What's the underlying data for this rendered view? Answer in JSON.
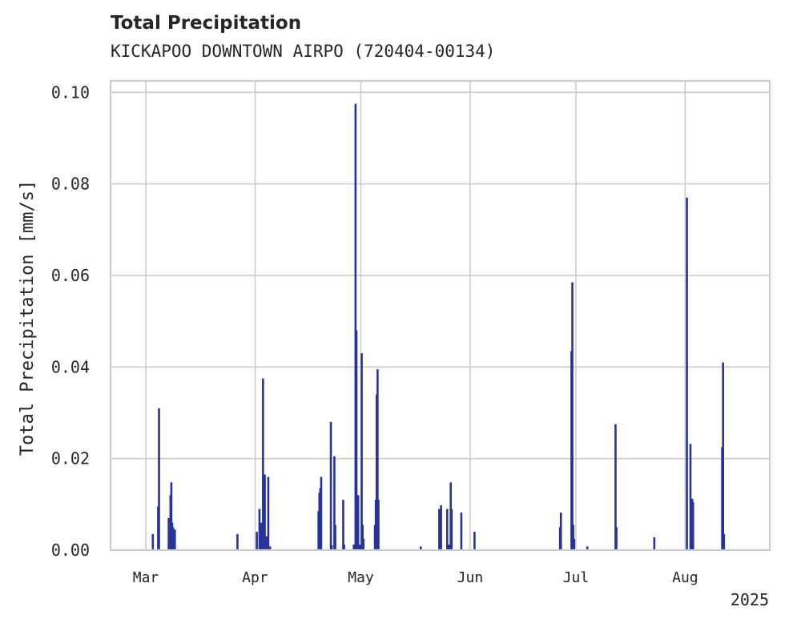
{
  "chart_data": {
    "type": "bar",
    "title": "Total Precipitation",
    "subtitle": "KICKAPOO DOWNTOWN AIRPO (720404-00134)",
    "ylabel": "Total Precipitation [mm/s]",
    "xlabel": "",
    "year_label": "2025",
    "grid": true,
    "color": "#27339a",
    "xlim": [
      "2025-02-19",
      "2025-08-25"
    ],
    "ylim": [
      0,
      0.1025
    ],
    "yticks": [
      0,
      0.02,
      0.04,
      0.06,
      0.08,
      0.1
    ],
    "ytick_labels": [
      "0.00",
      "0.02",
      "0.04",
      "0.06",
      "0.08",
      "0.10"
    ],
    "xticks": [
      "2025-03-01",
      "2025-04-01",
      "2025-05-01",
      "2025-06-01",
      "2025-07-01",
      "2025-08-01"
    ],
    "xtick_labels": [
      "Mar",
      "Apr",
      "May",
      "Jun",
      "Jul",
      "Aug"
    ],
    "points": [
      [
        "2025-03-03T00:00",
        0.0035
      ],
      [
        "2025-03-04T12:00",
        0.0095
      ],
      [
        "2025-03-04T18:00",
        0.031
      ],
      [
        "2025-03-07T12:00",
        0.007
      ],
      [
        "2025-03-08T00:00",
        0.012
      ],
      [
        "2025-03-08T06:00",
        0.0148
      ],
      [
        "2025-03-08T12:00",
        0.006
      ],
      [
        "2025-03-08T18:00",
        0.005
      ],
      [
        "2025-03-09T06:00",
        0.0045
      ],
      [
        "2025-03-27T00:00",
        0.0035
      ],
      [
        "2025-04-01T12:00",
        0.004
      ],
      [
        "2025-04-02T06:00",
        0.009
      ],
      [
        "2025-04-02T18:00",
        0.006
      ],
      [
        "2025-04-03T06:00",
        0.0375
      ],
      [
        "2025-04-03T18:00",
        0.0165
      ],
      [
        "2025-04-04T06:00",
        0.003
      ],
      [
        "2025-04-04T18:00",
        0.016
      ],
      [
        "2025-04-05T06:00",
        0.0008
      ],
      [
        "2025-04-19T00:00",
        0.0085
      ],
      [
        "2025-04-19T06:00",
        0.0125
      ],
      [
        "2025-04-19T12:00",
        0.0135
      ],
      [
        "2025-04-19T18:00",
        0.016
      ],
      [
        "2025-04-22T12:00",
        0.028
      ],
      [
        "2025-04-22T18:00",
        0.001
      ],
      [
        "2025-04-23T12:00",
        0.0205
      ],
      [
        "2025-04-23T18:00",
        0.0055
      ],
      [
        "2025-04-26T00:00",
        0.011
      ],
      [
        "2025-04-26T06:00",
        0.0012
      ],
      [
        "2025-04-29T00:00",
        0.0012
      ],
      [
        "2025-04-29T06:00",
        0.0012
      ],
      [
        "2025-04-29T12:00",
        0.0975
      ],
      [
        "2025-04-29T18:00",
        0.048
      ],
      [
        "2025-04-30T06:00",
        0.012
      ],
      [
        "2025-04-30T18:00",
        0.0012
      ],
      [
        "2025-05-01T06:00",
        0.043
      ],
      [
        "2025-05-01T12:00",
        0.0055
      ],
      [
        "2025-05-01T18:00",
        0.0025
      ],
      [
        "2025-05-05T00:00",
        0.0055
      ],
      [
        "2025-05-05T06:00",
        0.011
      ],
      [
        "2025-05-05T12:00",
        0.034
      ],
      [
        "2025-05-05T18:00",
        0.0395
      ],
      [
        "2025-05-06T00:00",
        0.011
      ],
      [
        "2025-05-18T00:00",
        0.0008
      ],
      [
        "2025-05-23T06:00",
        0.009
      ],
      [
        "2025-05-23T18:00",
        0.0098
      ],
      [
        "2025-05-25T12:00",
        0.009
      ],
      [
        "2025-05-26T00:00",
        0.0012
      ],
      [
        "2025-05-26T12:00",
        0.0148
      ],
      [
        "2025-05-26T18:00",
        0.009
      ],
      [
        "2025-05-29T12:00",
        0.0082
      ],
      [
        "2025-06-02T06:00",
        0.004
      ],
      [
        "2025-06-26T12:00",
        0.005
      ],
      [
        "2025-06-26T18:00",
        0.0082
      ],
      [
        "2025-06-29T18:00",
        0.0435
      ],
      [
        "2025-06-30T00:00",
        0.0585
      ],
      [
        "2025-06-30T06:00",
        0.0055
      ],
      [
        "2025-06-30T12:00",
        0.0025
      ],
      [
        "2025-07-04T06:00",
        0.0008
      ],
      [
        "2025-07-12T06:00",
        0.0275
      ],
      [
        "2025-07-12T12:00",
        0.005
      ],
      [
        "2025-07-23T06:00",
        0.0028
      ],
      [
        "2025-08-01T12:00",
        0.077
      ],
      [
        "2025-08-02T12:00",
        0.0232
      ],
      [
        "2025-08-02T18:00",
        0.011
      ],
      [
        "2025-08-03T00:00",
        0.0112
      ],
      [
        "2025-08-03T06:00",
        0.0105
      ],
      [
        "2025-08-11T12:00",
        0.0225
      ],
      [
        "2025-08-11T18:00",
        0.041
      ],
      [
        "2025-08-12T00:00",
        0.0035
      ]
    ]
  }
}
